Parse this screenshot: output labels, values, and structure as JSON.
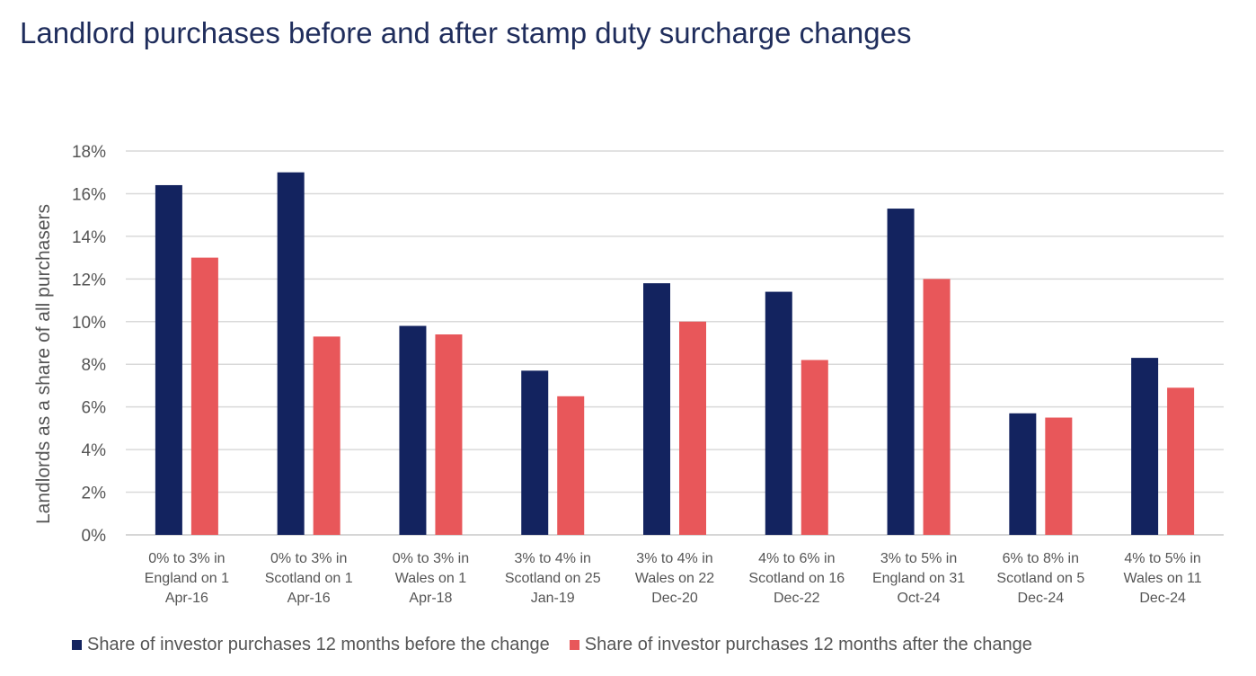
{
  "chart_data": {
    "type": "bar",
    "title": "Landlord purchases before and after stamp duty surcharge changes",
    "ylabel": "Landlords as a share of all purchasers",
    "xlabel": "",
    "ylim": [
      0,
      18
    ],
    "yticks": [
      "0%",
      "2%",
      "4%",
      "6%",
      "8%",
      "10%",
      "12%",
      "14%",
      "16%",
      "18%"
    ],
    "grid": true,
    "legend_position": "bottom",
    "categories": [
      [
        "0% to 3% in",
        "England on 1",
        "Apr-16"
      ],
      [
        "0% to 3% in",
        "Scotland on 1",
        "Apr-16"
      ],
      [
        "0% to 3% in",
        "Wales on 1",
        "Apr-18"
      ],
      [
        "3% to 4% in",
        "Scotland on 25",
        "Jan-19"
      ],
      [
        "3% to 4% in",
        "Wales on 22",
        "Dec-20"
      ],
      [
        "4% to 6% in",
        "Scotland on 16",
        "Dec-22"
      ],
      [
        "3% to 5% in",
        "England on 31",
        "Oct-24"
      ],
      [
        "6% to 8% in",
        "Scotland on 5",
        "Dec-24"
      ],
      [
        "4% to 5% in",
        "Wales on 11",
        "Dec-24"
      ]
    ],
    "series": [
      {
        "name": "Share of investor purchases 12 months before the change",
        "color": "#13235f",
        "values": [
          16.4,
          17.0,
          9.8,
          7.7,
          11.8,
          11.4,
          15.3,
          5.7,
          8.3
        ]
      },
      {
        "name": "Share of investor purchases 12 months after the change",
        "color": "#e8575a",
        "values": [
          13.0,
          9.3,
          9.4,
          6.5,
          10.0,
          8.2,
          12.0,
          5.5,
          6.9
        ]
      }
    ]
  }
}
